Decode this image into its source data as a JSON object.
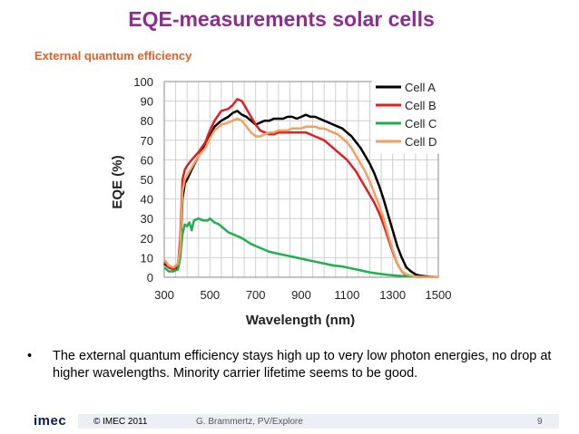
{
  "header": {
    "title": "EQE-measurements solar cells",
    "subtitle": "External quantum efficiency"
  },
  "bullet": {
    "text": "The external quantum efficiency stays high up to very low photon energies, no drop at higher wavelengths. Minority carrier lifetime seems to be good."
  },
  "footer": {
    "logo": "imec",
    "copyright": "© IMEC 2011",
    "author": "G. Brammertz, PV/Explore",
    "page": "9"
  },
  "chart_data": {
    "type": "line",
    "xlabel": "Wavelength (nm)",
    "ylabel": "EQE (%)",
    "xlim": [
      300,
      1500
    ],
    "ylim": [
      0,
      100
    ],
    "xticks": [
      300,
      500,
      700,
      900,
      1100,
      1300,
      1500
    ],
    "yticks": [
      0,
      10,
      20,
      30,
      40,
      50,
      60,
      70,
      80,
      90,
      100
    ],
    "grid": true,
    "legend_position": "top-right",
    "series": [
      {
        "name": "Cell A",
        "color": "#000000",
        "x": [
          300,
          320,
          340,
          360,
          370,
          380,
          390,
          400,
          420,
          450,
          480,
          500,
          520,
          550,
          580,
          600,
          620,
          640,
          660,
          680,
          700,
          720,
          740,
          760,
          780,
          800,
          820,
          840,
          860,
          880,
          900,
          920,
          940,
          960,
          980,
          1000,
          1020,
          1040,
          1060,
          1080,
          1100,
          1120,
          1140,
          1160,
          1180,
          1200,
          1220,
          1240,
          1260,
          1280,
          1300,
          1320,
          1340,
          1360,
          1380,
          1400,
          1420,
          1440,
          1460,
          1480,
          1500
        ],
        "y": [
          7,
          5,
          4,
          5,
          12,
          40,
          48,
          50,
          55,
          62,
          67,
          72,
          77,
          80,
          82,
          84,
          85,
          83,
          82,
          80,
          78,
          79,
          80,
          80,
          81,
          81,
          81,
          82,
          82,
          81,
          82,
          83,
          82,
          82,
          81,
          80,
          79,
          78,
          77,
          76,
          74,
          72,
          69,
          66,
          62,
          58,
          53,
          47,
          40,
          32,
          24,
          16,
          10,
          5,
          3,
          1.5,
          0.8,
          0.5,
          0.3,
          0.2,
          0.1
        ]
      },
      {
        "name": "Cell B",
        "color": "#e02020",
        "x": [
          300,
          320,
          340,
          360,
          370,
          380,
          390,
          400,
          420,
          450,
          480,
          500,
          520,
          550,
          580,
          600,
          620,
          640,
          660,
          680,
          700,
          720,
          740,
          760,
          780,
          800,
          820,
          840,
          860,
          880,
          900,
          920,
          940,
          960,
          980,
          1000,
          1020,
          1040,
          1060,
          1080,
          1100,
          1120,
          1140,
          1160,
          1180,
          1200,
          1220,
          1240,
          1260,
          1280,
          1300,
          1320,
          1340,
          1360,
          1380,
          1400,
          1420,
          1440,
          1460,
          1480,
          1500
        ],
        "y": [
          8,
          5,
          4,
          6,
          20,
          50,
          55,
          57,
          60,
          64,
          69,
          75,
          80,
          85,
          86,
          88,
          91,
          90,
          86,
          82,
          78,
          75,
          74,
          73,
          73,
          74,
          74,
          74,
          74,
          74,
          74,
          74,
          73,
          72,
          71,
          70,
          68,
          66,
          64,
          62,
          60,
          57,
          54,
          50,
          46,
          42,
          38,
          33,
          27,
          20,
          13,
          7,
          3,
          1,
          0.5,
          0.3,
          0.2,
          0.1,
          0.1,
          0.1,
          0.1
        ]
      },
      {
        "name": "Cell C",
        "color": "#20b050",
        "x": [
          300,
          320,
          340,
          360,
          370,
          380,
          390,
          400,
          410,
          420,
          430,
          450,
          470,
          490,
          500,
          520,
          540,
          560,
          580,
          600,
          640,
          680,
          720,
          760,
          800,
          840,
          880,
          920,
          960,
          1000,
          1040,
          1080,
          1120,
          1160,
          1200,
          1240,
          1280,
          1320,
          1360,
          1400,
          1440,
          1480,
          1500
        ],
        "y": [
          5,
          3,
          3,
          4,
          10,
          22,
          27,
          26,
          28,
          24,
          29,
          30,
          29,
          29,
          30,
          28,
          27,
          25,
          23,
          22,
          20,
          17,
          15,
          13,
          12,
          11,
          10,
          9,
          8,
          7,
          6,
          5.5,
          4.5,
          3.5,
          2.5,
          1.8,
          1.2,
          0.8,
          0.5,
          0.3,
          0.2,
          0.1,
          0.1
        ]
      },
      {
        "name": "Cell D",
        "color": "#f0a060",
        "x": [
          300,
          320,
          340,
          360,
          370,
          380,
          390,
          400,
          420,
          450,
          480,
          500,
          520,
          550,
          580,
          600,
          620,
          640,
          660,
          680,
          700,
          720,
          740,
          760,
          780,
          800,
          820,
          840,
          860,
          880,
          900,
          920,
          940,
          960,
          980,
          1000,
          1020,
          1040,
          1060,
          1080,
          1100,
          1120,
          1140,
          1160,
          1180,
          1200,
          1220,
          1240,
          1260,
          1280,
          1300,
          1320,
          1340,
          1360,
          1380,
          1400,
          1420,
          1440,
          1460,
          1480,
          1500
        ],
        "y": [
          9,
          6,
          5,
          7,
          15,
          44,
          50,
          52,
          56,
          62,
          66,
          71,
          75,
          78,
          79,
          80,
          81,
          80,
          77,
          74,
          72,
          72,
          73,
          74,
          74,
          75,
          75,
          75,
          76,
          76,
          76,
          77,
          77,
          77,
          76,
          76,
          75,
          74,
          73,
          71,
          69,
          66,
          62,
          58,
          54,
          49,
          43,
          37,
          30,
          22,
          14,
          7,
          3,
          1.5,
          0.8,
          0.4,
          0.2,
          0.1,
          0.1,
          0.1,
          0.1
        ]
      }
    ]
  }
}
